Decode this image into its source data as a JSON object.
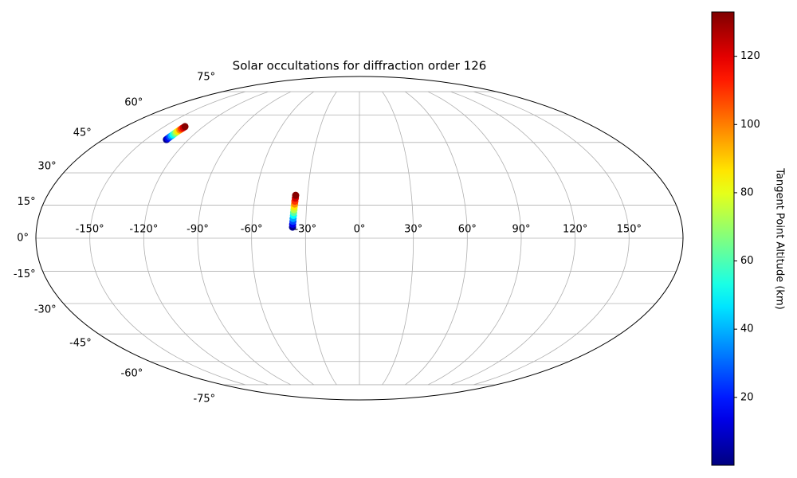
{
  "chart_data": {
    "type": "scatter",
    "projection": "mollweide",
    "title": "Solar occultations for diffraction order 126",
    "x": [
      -135.5,
      -135.4,
      -135.3,
      -135.1,
      -135.0,
      -134.9,
      -134.8,
      -134.7,
      -134.5,
      -134.4,
      -134.2,
      -134.1,
      -37.3,
      -37.3,
      -37.2,
      -37.2,
      -37.1,
      -37.1,
      -37.0,
      -37.0,
      -36.9,
      -36.9,
      -36.8,
      -36.8
    ],
    "y": [
      46.5,
      47.1,
      47.8,
      48.4,
      49.0,
      49.7,
      50.3,
      50.9,
      51.6,
      52.2,
      52.8,
      53.4,
      5.0,
      6.3,
      7.6,
      8.9,
      10.3,
      11.6,
      12.9,
      14.2,
      15.5,
      16.8,
      18.2,
      19.5
    ],
    "c": [
      2,
      14,
      26,
      38,
      50,
      62,
      74,
      86,
      98,
      110,
      122,
      132,
      2,
      14,
      26,
      38,
      50,
      62,
      74,
      86,
      98,
      110,
      122,
      132
    ],
    "colormap": "jet",
    "xlim": [
      -180,
      180
    ],
    "ylim": [
      -90,
      90
    ],
    "xticks": [
      {
        "value": -150,
        "label": "-150°"
      },
      {
        "value": -120,
        "label": "-120°"
      },
      {
        "value": -90,
        "label": "-90°"
      },
      {
        "value": -60,
        "label": "-60°"
      },
      {
        "value": -30,
        "label": "-30°"
      },
      {
        "value": 0,
        "label": "0°"
      },
      {
        "value": 30,
        "label": "30°"
      },
      {
        "value": 60,
        "label": "60°"
      },
      {
        "value": 90,
        "label": "90°"
      },
      {
        "value": 120,
        "label": "120°"
      },
      {
        "value": 150,
        "label": "150°"
      }
    ],
    "yticks": [
      {
        "value": -75,
        "label": "-75°"
      },
      {
        "value": -60,
        "label": "-60°"
      },
      {
        "value": -45,
        "label": "-45°"
      },
      {
        "value": -30,
        "label": "-30°"
      },
      {
        "value": -15,
        "label": "-15°"
      },
      {
        "value": 0,
        "label": "0°"
      },
      {
        "value": 15,
        "label": "15°"
      },
      {
        "value": 30,
        "label": "30°"
      },
      {
        "value": 45,
        "label": "45°"
      },
      {
        "value": 60,
        "label": "60°"
      },
      {
        "value": 75,
        "label": "75°"
      }
    ],
    "grid": true,
    "colorbar": {
      "label": "Tangent Point Altitude (km)",
      "clim": [
        0.1,
        133
      ],
      "ticks": [
        20,
        40,
        60,
        80,
        100,
        120
      ]
    }
  }
}
